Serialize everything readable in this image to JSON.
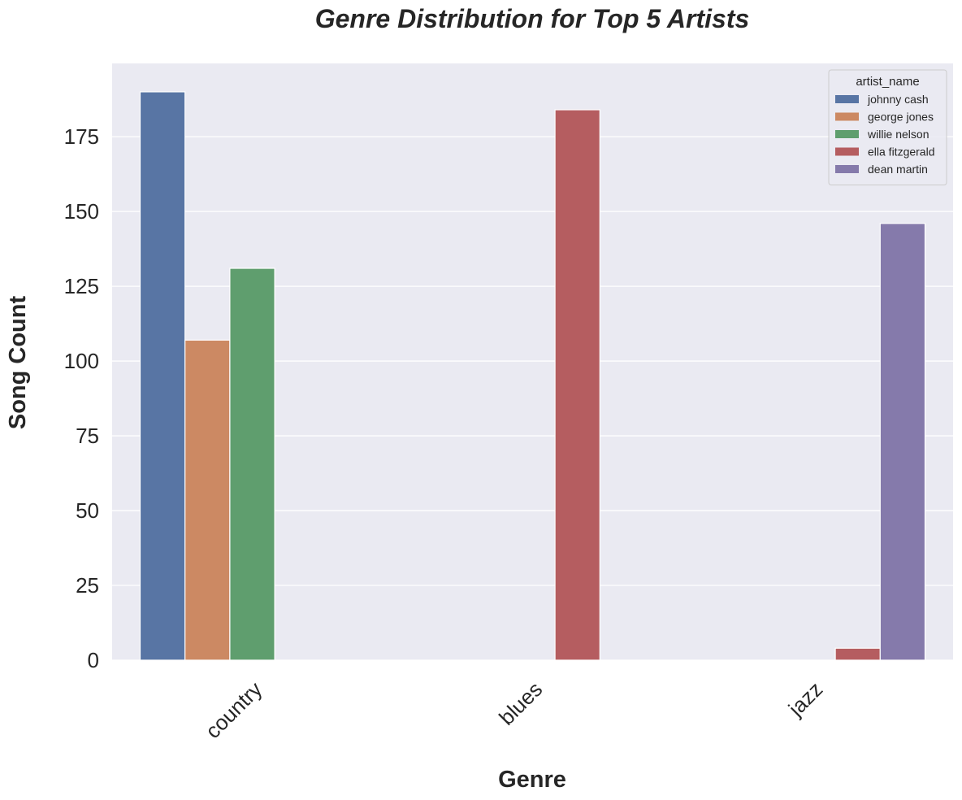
{
  "chart_data": {
    "type": "bar",
    "title": "Genre Distribution for Top 5 Artists",
    "xlabel": "Genre",
    "ylabel": "Song Count",
    "categories": [
      "country",
      "blues",
      "jazz"
    ],
    "series": [
      {
        "name": "johnny cash",
        "color": "#5875a4",
        "values": [
          190,
          0,
          0
        ]
      },
      {
        "name": "george jones",
        "color": "#cc8963",
        "values": [
          107,
          0,
          0
        ]
      },
      {
        "name": "willie nelson",
        "color": "#5f9e6e",
        "values": [
          131,
          0,
          0
        ]
      },
      {
        "name": "ella fitzgerald",
        "color": "#b55d60",
        "values": [
          0,
          184,
          4
        ]
      },
      {
        "name": "dean martin",
        "color": "#857aab",
        "values": [
          0,
          0,
          146
        ]
      }
    ],
    "ylim": [
      0,
      199.5
    ],
    "yticks": [
      0,
      25,
      50,
      75,
      100,
      125,
      150,
      175
    ],
    "grid": true,
    "legend": {
      "title": "artist_name",
      "placement": "top-right"
    },
    "background_color": "#eaeaf2",
    "grid_color": "#ffffff"
  }
}
